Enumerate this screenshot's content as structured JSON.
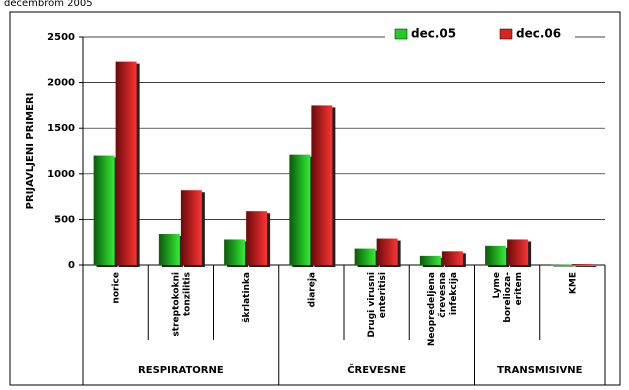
{
  "header": "decembrom 2005",
  "chart_data": {
    "type": "bar",
    "y_label": "PRIJAVLJENI PRIMERI",
    "categories": [
      "norice",
      "streptokokni\ntonzilitis",
      "škrlatinka",
      "diareja",
      "Drugi virusni\nenteritisi",
      "Neopredeljena\nčrevesna\ninfekcija",
      "Lyme\nborelioza-\neritem",
      "KME"
    ],
    "groups": [
      "RESPIRATORNE",
      "ČREVESNE",
      "TRANSMISIVNE"
    ],
    "series": [
      {
        "name": "dec.05",
        "color": "#22cc22",
        "values": [
          1200,
          340,
          280,
          1210,
          180,
          100,
          210,
          5
        ]
      },
      {
        "name": "dec.06",
        "color": "#dd2222",
        "values": [
          2230,
          820,
          590,
          1750,
          290,
          150,
          280,
          10
        ]
      }
    ],
    "ylim": [
      0,
      2500
    ],
    "yticks": [
      0,
      500,
      1000,
      1500,
      2000,
      2500
    ],
    "grid": true,
    "legend": "top"
  }
}
